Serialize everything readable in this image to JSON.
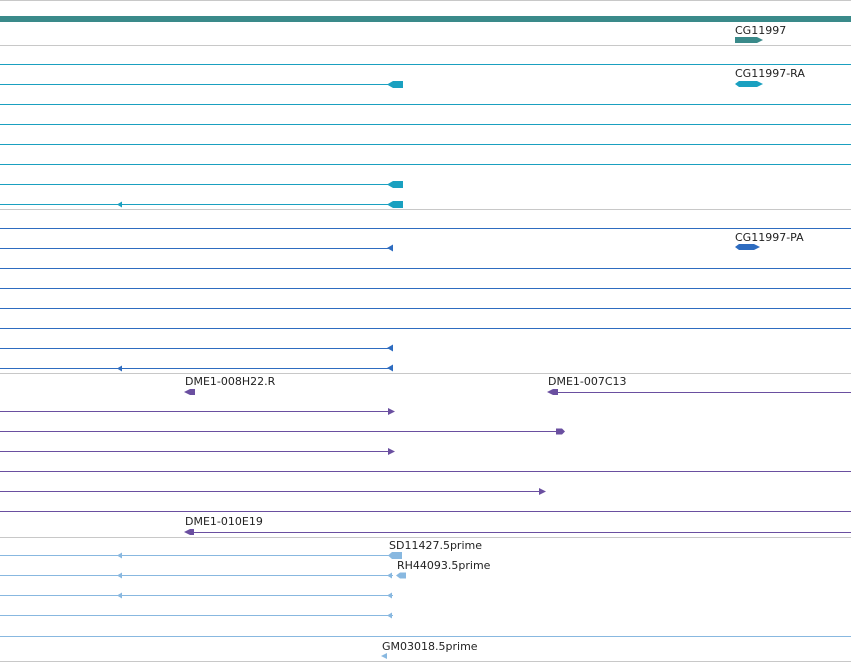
{
  "colors": {
    "separator": "#c8c8c8",
    "gene": "#3a8a8a",
    "transcript": "#1aa0c0",
    "protein": "#2e6cc0",
    "clone": "#6a4fa0",
    "est": "#88b8e0"
  },
  "features": {
    "gene": {
      "label": "CG11997"
    },
    "transcript": {
      "label": "CG11997-RA"
    },
    "protein": {
      "label": "CG11997-PA"
    },
    "clone_1": {
      "label": "DME1-008H22.R"
    },
    "clone_2": {
      "label": "DME1-007C13"
    },
    "clone_3": {
      "label": "DME1-010E19"
    },
    "est_1": {
      "label": "SD11427.5prime"
    },
    "est_2": {
      "label": "RH44093.5prime"
    },
    "est_3": {
      "label": "GM03018.5prime"
    }
  }
}
